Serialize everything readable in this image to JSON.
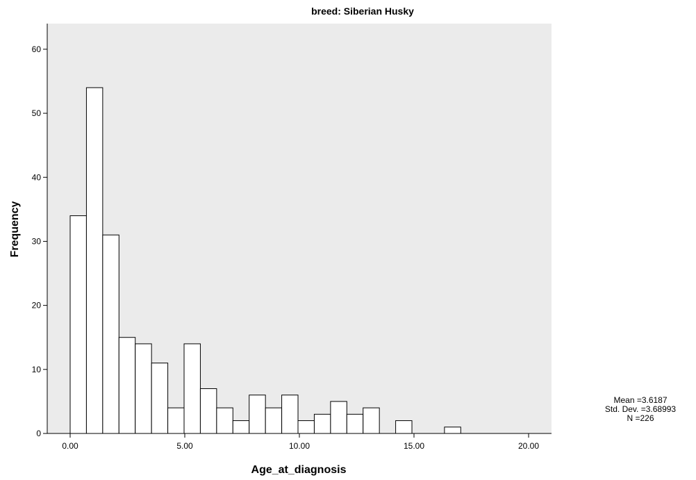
{
  "chart_data": {
    "type": "bar",
    "title": "breed: Siberian Husky",
    "xlabel": "Age_at_diagnosis",
    "ylabel": "Frequency",
    "xlim": [
      -1.0,
      21.0
    ],
    "ylim": [
      0,
      64
    ],
    "x_ticks": [
      "0.00",
      "5.00",
      "10.00",
      "15.00",
      "20.00"
    ],
    "x_tick_values": [
      0,
      5,
      10,
      15,
      20
    ],
    "y_ticks": [
      "0",
      "10",
      "20",
      "30",
      "40",
      "50",
      "60"
    ],
    "y_tick_values": [
      0,
      10,
      20,
      30,
      40,
      50,
      60
    ],
    "bin_width": 0.71,
    "bins": [
      {
        "start": 0.0,
        "count": 34
      },
      {
        "start": 0.71,
        "count": 54
      },
      {
        "start": 1.42,
        "count": 31
      },
      {
        "start": 2.13,
        "count": 15
      },
      {
        "start": 2.84,
        "count": 14
      },
      {
        "start": 3.55,
        "count": 11
      },
      {
        "start": 4.26,
        "count": 4
      },
      {
        "start": 4.97,
        "count": 14
      },
      {
        "start": 5.68,
        "count": 7
      },
      {
        "start": 6.39,
        "count": 4
      },
      {
        "start": 7.1,
        "count": 2
      },
      {
        "start": 7.81,
        "count": 6
      },
      {
        "start": 8.52,
        "count": 4
      },
      {
        "start": 9.23,
        "count": 6
      },
      {
        "start": 9.94,
        "count": 2
      },
      {
        "start": 10.65,
        "count": 3
      },
      {
        "start": 11.36,
        "count": 5
      },
      {
        "start": 12.07,
        "count": 3
      },
      {
        "start": 12.78,
        "count": 4
      },
      {
        "start": 13.49,
        "count": 0
      },
      {
        "start": 14.2,
        "count": 2
      },
      {
        "start": 14.91,
        "count": 0
      },
      {
        "start": 15.62,
        "count": 0
      },
      {
        "start": 16.33,
        "count": 1
      }
    ],
    "grid": false,
    "plot_background": "#ebebeb",
    "bar_fill": "#ffffff",
    "bar_stroke": "#000000"
  },
  "stats": {
    "mean": "Mean =3.6187",
    "std_dev": "Std. Dev. =3.68993",
    "n": "N =226"
  }
}
